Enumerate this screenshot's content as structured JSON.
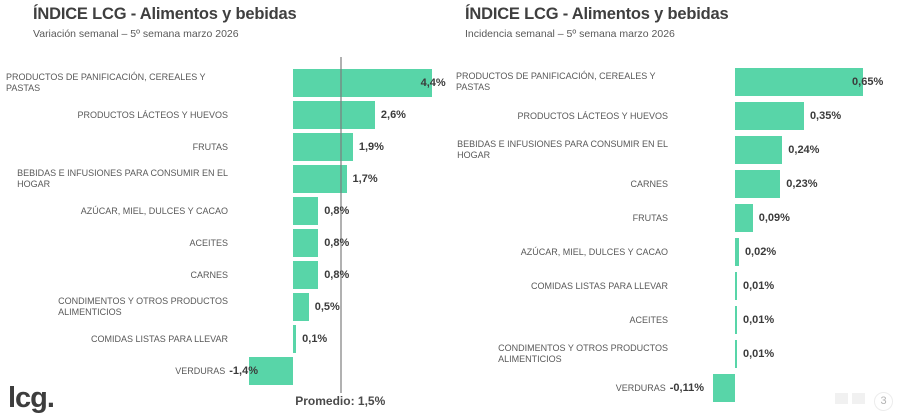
{
  "footer": {
    "logo": "lcg.",
    "page_number": "3"
  },
  "chart_data": [
    {
      "type": "bar",
      "orientation": "horizontal",
      "title": "ÍNDICE LCG - Alimentos y bebidas",
      "subtitle": "Variación semanal – 5º semana marzo 2026",
      "unit": "%",
      "bar_color": "#58d5a8",
      "grid": false,
      "legend": null,
      "xlim": [
        -2.2,
        5.0
      ],
      "categories": [
        "PRODUCTOS DE PANIFICACIÓN, CEREALES Y PASTAS",
        "PRODUCTOS LÁCTEOS Y HUEVOS",
        "FRUTAS",
        "BEBIDAS E INFUSIONES PARA CONSUMIR EN EL\nHOGAR",
        "AZÚCAR, MIEL, DULCES Y CACAO",
        "ACEITES",
        "CARNES",
        "CONDIMENTOS Y OTROS PRODUCTOS\nALIMENTICIOS",
        "COMIDAS LISTAS PARA LLEVAR",
        "VERDURAS"
      ],
      "values": [
        4.4,
        2.6,
        1.9,
        1.7,
        0.8,
        0.8,
        0.8,
        0.5,
        0.1,
        -1.4
      ],
      "value_labels": [
        "4,4%",
        "2,6%",
        "1,9%",
        "1,7%",
        "0,8%",
        "0,8%",
        "0,8%",
        "0,5%",
        "0,1%",
        "-1,4%"
      ],
      "average_line": {
        "value": 1.5,
        "label": "Promedio: 1,5%"
      }
    },
    {
      "type": "bar",
      "orientation": "horizontal",
      "title": "ÍNDICE LCG - Alimentos y bebidas",
      "subtitle": "Incidencia semanal – 5º semana marzo 2026",
      "unit": "%",
      "bar_color": "#58d5a8",
      "grid": false,
      "legend": null,
      "xlim": [
        -0.37,
        0.84
      ],
      "categories": [
        "PRODUCTOS DE PANIFICACIÓN, CEREALES Y PASTAS",
        "PRODUCTOS LÁCTEOS Y HUEVOS",
        "BEBIDAS E INFUSIONES PARA CONSUMIR EN EL\nHOGAR",
        "CARNES",
        "FRUTAS",
        "AZÚCAR, MIEL, DULCES Y CACAO",
        "COMIDAS LISTAS PARA LLEVAR",
        "ACEITES",
        "CONDIMENTOS Y OTROS PRODUCTOS\nALIMENTICIOS",
        "VERDURAS"
      ],
      "values": [
        0.65,
        0.35,
        0.24,
        0.23,
        0.09,
        0.02,
        0.01,
        0.01,
        0.01,
        -0.11
      ],
      "value_labels": [
        "0,65%",
        "0,35%",
        "0,24%",
        "0,23%",
        "0,09%",
        "0,02%",
        "0,01%",
        "0,01%",
        "0,01%",
        "-0,11%"
      ],
      "average_line": null
    }
  ]
}
